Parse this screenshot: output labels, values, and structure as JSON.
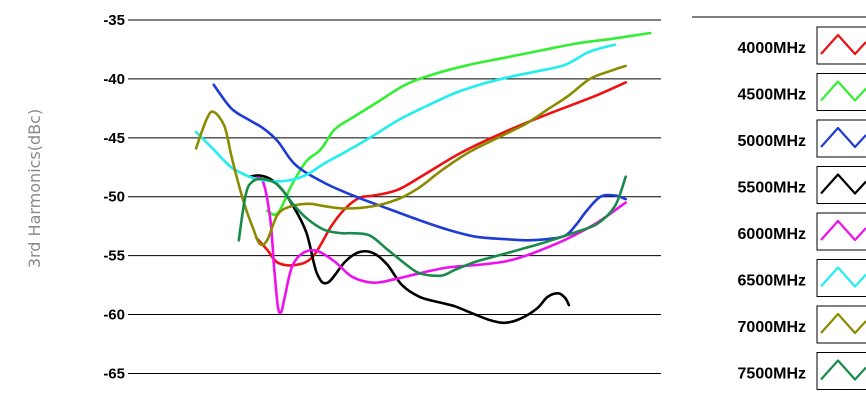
{
  "chart_data": {
    "type": "line",
    "title": "",
    "xlabel": "",
    "ylabel": "3rd Harmonics(dBc)",
    "ylim": [
      -67,
      -35
    ],
    "y_ticks": [
      -35,
      -40,
      -45,
      -50,
      -55,
      -60,
      -65
    ],
    "y_tick_labels": [
      "-35",
      "-40",
      "-45",
      "-50",
      "-55",
      "-60",
      "-65"
    ],
    "grid": "horizontal",
    "legend_position": "right",
    "series": [
      {
        "name": "4000MHz",
        "color": "#ee1111",
        "x": [
          0.13,
          0.153,
          0.176,
          0.214,
          0.251,
          0.291,
          0.321,
          0.351,
          0.382,
          0.435,
          0.496,
          0.573,
          0.664,
          0.756,
          0.855,
          0.924
        ],
        "values": [
          -53.5,
          -54.5,
          -55.6,
          -55.8,
          -55.1,
          -52.5,
          -51.0,
          -50.1,
          -49.9,
          -49.4,
          -48.0,
          -46.2,
          -44.5,
          -43.0,
          -41.5,
          -40.3
        ]
      },
      {
        "name": "4500MHz",
        "color": "#33ee33",
        "x": [
          0.153,
          0.176,
          0.206,
          0.237,
          0.268,
          0.298,
          0.336,
          0.389,
          0.45,
          0.511,
          0.588,
          0.664,
          0.74,
          0.817,
          0.893,
          0.977
        ],
        "values": [
          -51.2,
          -51.4,
          -49.0,
          -47.0,
          -46.0,
          -44.3,
          -43.3,
          -42.0,
          -40.5,
          -39.6,
          -38.8,
          -38.2,
          -37.6,
          -37.0,
          -36.6,
          -36.1
        ]
      },
      {
        "name": "5000MHz",
        "color": "#1f3bd6",
        "x": [
          0.038,
          0.076,
          0.115,
          0.145,
          0.176,
          0.214,
          0.275,
          0.344,
          0.412,
          0.481,
          0.542,
          0.603,
          0.664,
          0.71,
          0.756,
          0.794,
          0.817,
          0.84,
          0.87,
          0.901,
          0.924
        ],
        "values": [
          -40.5,
          -42.5,
          -43.5,
          -44.2,
          -45.3,
          -47.3,
          -48.8,
          -50.0,
          -51.0,
          -52.0,
          -52.8,
          -53.4,
          -53.6,
          -53.7,
          -53.6,
          -53.3,
          -52.4,
          -51.2,
          -50.0,
          -49.9,
          -50.2
        ]
      },
      {
        "name": "5500MHz",
        "color": "#000000",
        "x": [
          0.115,
          0.137,
          0.16,
          0.183,
          0.206,
          0.237,
          0.26,
          0.283,
          0.321,
          0.351,
          0.382,
          0.412,
          0.443,
          0.481,
          0.527,
          0.557,
          0.588,
          0.634,
          0.664,
          0.695,
          0.733,
          0.756,
          0.779,
          0.794,
          0.802
        ],
        "values": [
          -48.3,
          -48.2,
          -48.5,
          -49.3,
          -50.6,
          -53.0,
          -56.5,
          -57.3,
          -55.5,
          -54.7,
          -54.8,
          -55.8,
          -57.5,
          -58.5,
          -59.0,
          -59.3,
          -59.8,
          -60.5,
          -60.7,
          -60.4,
          -59.5,
          -58.5,
          -58.2,
          -58.6,
          -59.2
        ]
      },
      {
        "name": "6000MHz",
        "color": "#ee11ee",
        "x": [
          0.13,
          0.145,
          0.16,
          0.168,
          0.176,
          0.183,
          0.191,
          0.206,
          0.229,
          0.26,
          0.298,
          0.336,
          0.382,
          0.427,
          0.481,
          0.542,
          0.603,
          0.664,
          0.71,
          0.756,
          0.802,
          0.863,
          0.924
        ],
        "values": [
          -48.4,
          -48.8,
          -52.0,
          -56.0,
          -59.3,
          -59.8,
          -58.5,
          -56.0,
          -54.8,
          -54.6,
          -55.5,
          -56.8,
          -57.3,
          -57.0,
          -56.5,
          -56.0,
          -55.8,
          -55.5,
          -55.0,
          -54.3,
          -53.5,
          -52.2,
          -50.5
        ]
      },
      {
        "name": "6500MHz",
        "color": "#22eeee",
        "x": [
          0.0,
          0.038,
          0.076,
          0.115,
          0.145,
          0.176,
          0.214,
          0.244,
          0.275,
          0.321,
          0.374,
          0.435,
          0.496,
          0.557,
          0.618,
          0.679,
          0.74,
          0.794,
          0.84,
          0.87,
          0.901
        ],
        "values": [
          -44.5,
          -46.0,
          -47.5,
          -48.3,
          -48.6,
          -48.7,
          -48.5,
          -48.0,
          -47.2,
          -46.2,
          -45.0,
          -43.5,
          -42.3,
          -41.2,
          -40.4,
          -39.8,
          -39.3,
          -38.8,
          -37.8,
          -37.4,
          -37.1
        ]
      },
      {
        "name": "7000MHz",
        "color": "#8b8b00",
        "x": [
          0.0,
          0.023,
          0.038,
          0.061,
          0.076,
          0.092,
          0.107,
          0.122,
          0.137,
          0.153,
          0.176,
          0.206,
          0.244,
          0.275,
          0.321,
          0.382,
          0.435,
          0.481,
          0.527,
          0.588,
          0.649,
          0.71,
          0.756,
          0.802,
          0.847,
          0.893,
          0.924
        ],
        "values": [
          -45.9,
          -43.4,
          -42.8,
          -44.0,
          -46.5,
          -49.0,
          -51.0,
          -52.6,
          -54.0,
          -53.7,
          -51.5,
          -50.8,
          -50.6,
          -50.8,
          -51.0,
          -50.8,
          -50.2,
          -49.2,
          -47.8,
          -46.2,
          -45.0,
          -43.8,
          -42.6,
          -41.4,
          -40.0,
          -39.3,
          -38.9
        ]
      },
      {
        "name": "7500MHz",
        "color": "#1a8a4a",
        "x": [
          0.092,
          0.107,
          0.122,
          0.145,
          0.176,
          0.206,
          0.237,
          0.275,
          0.313,
          0.336,
          0.374,
          0.412,
          0.45,
          0.481,
          0.527,
          0.557,
          0.603,
          0.649,
          0.695,
          0.74,
          0.779,
          0.817,
          0.863,
          0.901,
          0.924
        ],
        "values": [
          -53.7,
          -49.8,
          -48.7,
          -48.5,
          -49.0,
          -50.5,
          -51.8,
          -52.8,
          -53.1,
          -53.1,
          -53.3,
          -54.5,
          -55.7,
          -56.5,
          -56.7,
          -56.2,
          -55.5,
          -55.0,
          -54.5,
          -54.0,
          -53.5,
          -53.0,
          -52.3,
          -50.8,
          -48.3
        ]
      }
    ]
  }
}
